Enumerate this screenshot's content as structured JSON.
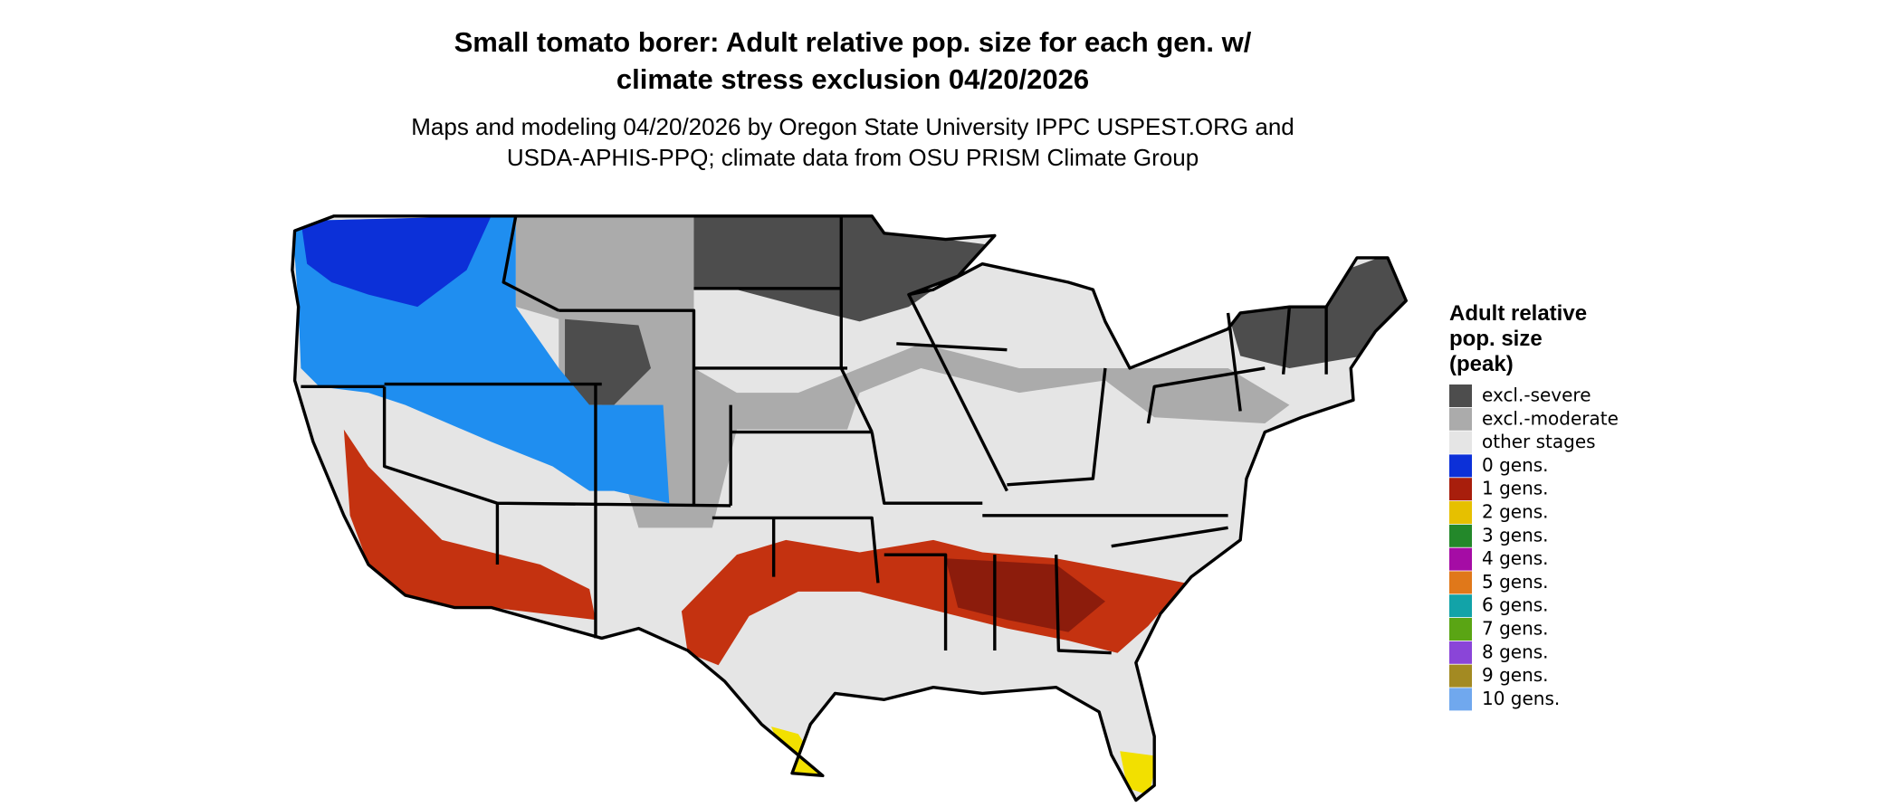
{
  "title": [
    "Small tomato borer: Adult relative pop. size for each gen. w/",
    "climate stress exclusion 04/20/2026"
  ],
  "subtitle": [
    "Maps and modeling 04/20/2026 by Oregon State University IPPC USPEST.ORG and",
    "USDA-APHIS-PPQ; climate data from OSU PRISM Climate Group"
  ],
  "legend": {
    "title": [
      "Adult relative",
      "pop. size",
      "(peak)"
    ],
    "items": [
      {
        "label": "excl.-severe",
        "color": "#4d4d4d"
      },
      {
        "label": "excl.-moderate",
        "color": "#ababab"
      },
      {
        "label": "other stages",
        "color": "#e5e5e5"
      },
      {
        "label": "0 gens.",
        "color": "#0c30d8"
      },
      {
        "label": "1 gens.",
        "color": "#a81e0c"
      },
      {
        "label": "2 gens.",
        "color": "#e6c000"
      },
      {
        "label": "3 gens.",
        "color": "#23882a"
      },
      {
        "label": "4 gens.",
        "color": "#a50ca5"
      },
      {
        "label": "5 gens.",
        "color": "#e0781a"
      },
      {
        "label": "6 gens.",
        "color": "#12a3a8"
      },
      {
        "label": "7 gens.",
        "color": "#5aa514"
      },
      {
        "label": "8 gens.",
        "color": "#8a45d8"
      },
      {
        "label": "9 gens.",
        "color": "#a38a22"
      },
      {
        "label": "10 gens.",
        "color": "#70a8ee"
      }
    ]
  }
}
